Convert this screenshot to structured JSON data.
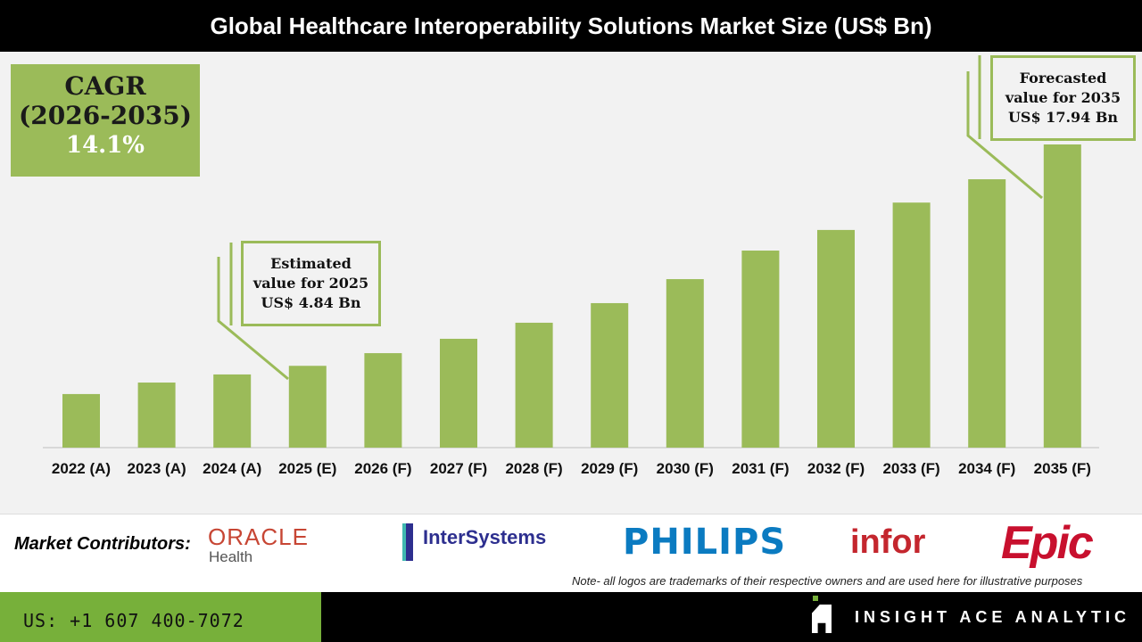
{
  "title": "Global Healthcare Interoperability Solutions Market Size (US$ Bn)",
  "cagr": {
    "line1": "CAGR",
    "line2": "(2026-2035)",
    "value": "14.1%"
  },
  "callouts": {
    "estimated": {
      "line1": "Estimated",
      "line2": "value for 2025",
      "line3": "US$ 4.84 Bn"
    },
    "forecasted": {
      "line1": "Forecasted",
      "line2": "value for 2035",
      "line3": "US$ 17.94 Bn"
    }
  },
  "chart_data": {
    "type": "bar",
    "title": "Global Healthcare Interoperability Solutions Market Size (US$ Bn)",
    "categories": [
      "2022 (A)",
      "2023 (A)",
      "2024 (A)",
      "2025 (E)",
      "2026 (F)",
      "2027 (F)",
      "2028 (F)",
      "2029 (F)",
      "2030 (F)",
      "2031 (F)",
      "2032 (F)",
      "2033 (F)",
      "2034 (F)",
      "2035 (F)"
    ],
    "values": [
      3.17,
      3.85,
      4.33,
      4.84,
      5.59,
      6.44,
      7.39,
      8.55,
      9.97,
      11.66,
      12.88,
      14.5,
      15.88,
      17.94
    ],
    "xlabel": "",
    "ylabel": "",
    "ylim": [
      0,
      17.94
    ],
    "grid": false,
    "bar_color": "#9bbb59"
  },
  "contributors": {
    "label": "Market Contributors:",
    "logos": {
      "oracle": "ORACLE",
      "oracle_sub": "Health",
      "intersystems": "InterSystems",
      "philips": "PHILIPS",
      "infor": "infor",
      "epic": "Epic"
    },
    "note": "Note- all logos are trademarks of their respective owners and are used here for illustrative purposes"
  },
  "footer": {
    "phone": "US: +1 607 400-7072",
    "brand": "INSIGHT ACE ANALYTIC"
  },
  "colors": {
    "green": "#9bbb59",
    "footer_green": "#77b03a"
  }
}
